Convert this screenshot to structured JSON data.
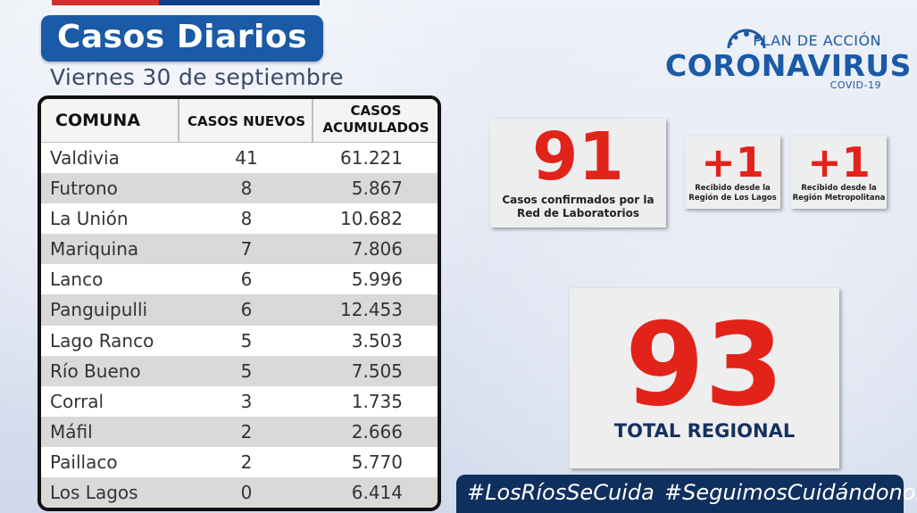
{
  "header": {
    "title": "Casos Diarios",
    "date": "Viernes 30 de septiembre"
  },
  "logo": {
    "plan": "PLAN DE ACCIÓN",
    "main": "CORONAVIRUS",
    "sub": "COVID-19"
  },
  "table": {
    "headers": {
      "comuna": "COMUNA",
      "nuevos": "CASOS NUEVOS",
      "acumulados_1": "CASOS",
      "acumulados_2": "ACUMULADOS"
    },
    "rows": [
      {
        "comuna": "Valdivia",
        "nuevos": "41",
        "acumulados": "61.221"
      },
      {
        "comuna": "Futrono",
        "nuevos": "8",
        "acumulados": "5.867"
      },
      {
        "comuna": "La Unión",
        "nuevos": "8",
        "acumulados": "10.682"
      },
      {
        "comuna": "Mariquina",
        "nuevos": "7",
        "acumulados": "7.806"
      },
      {
        "comuna": "Lanco",
        "nuevos": "6",
        "acumulados": "5.996"
      },
      {
        "comuna": "Panguipulli",
        "nuevos": "6",
        "acumulados": "12.453"
      },
      {
        "comuna": "Lago Ranco",
        "nuevos": "5",
        "acumulados": "3.503"
      },
      {
        "comuna": "Río Bueno",
        "nuevos": "5",
        "acumulados": "7.505"
      },
      {
        "comuna": "Corral",
        "nuevos": "3",
        "acumulados": "1.735"
      },
      {
        "comuna": "Máfil",
        "nuevos": "2",
        "acumulados": "2.666"
      },
      {
        "comuna": "Paillaco",
        "nuevos": "2",
        "acumulados": "5.770"
      },
      {
        "comuna": "Los Lagos",
        "nuevos": "0",
        "acumulados": "6.414"
      }
    ]
  },
  "stats": {
    "lab": {
      "value": "91",
      "label_1": "Casos confirmados por la",
      "label_2": "Red de Laboratorios"
    },
    "lagos": {
      "value": "+1",
      "label_1": "Recibido desde la",
      "label_2": "Región de Los Lagos"
    },
    "metro": {
      "value": "+1",
      "label_1": "Recibido desde la",
      "label_2": "Región Metropolitana"
    },
    "total": {
      "value": "93",
      "label": "TOTAL REGIONAL"
    }
  },
  "hashtags": [
    "#LosRíosSeCuida",
    "#SeguimosCuidándonos"
  ],
  "colors": {
    "accent_blue": "#1a5aa6",
    "highlight_red": "#e2231a",
    "navy": "#0f2f5e"
  }
}
